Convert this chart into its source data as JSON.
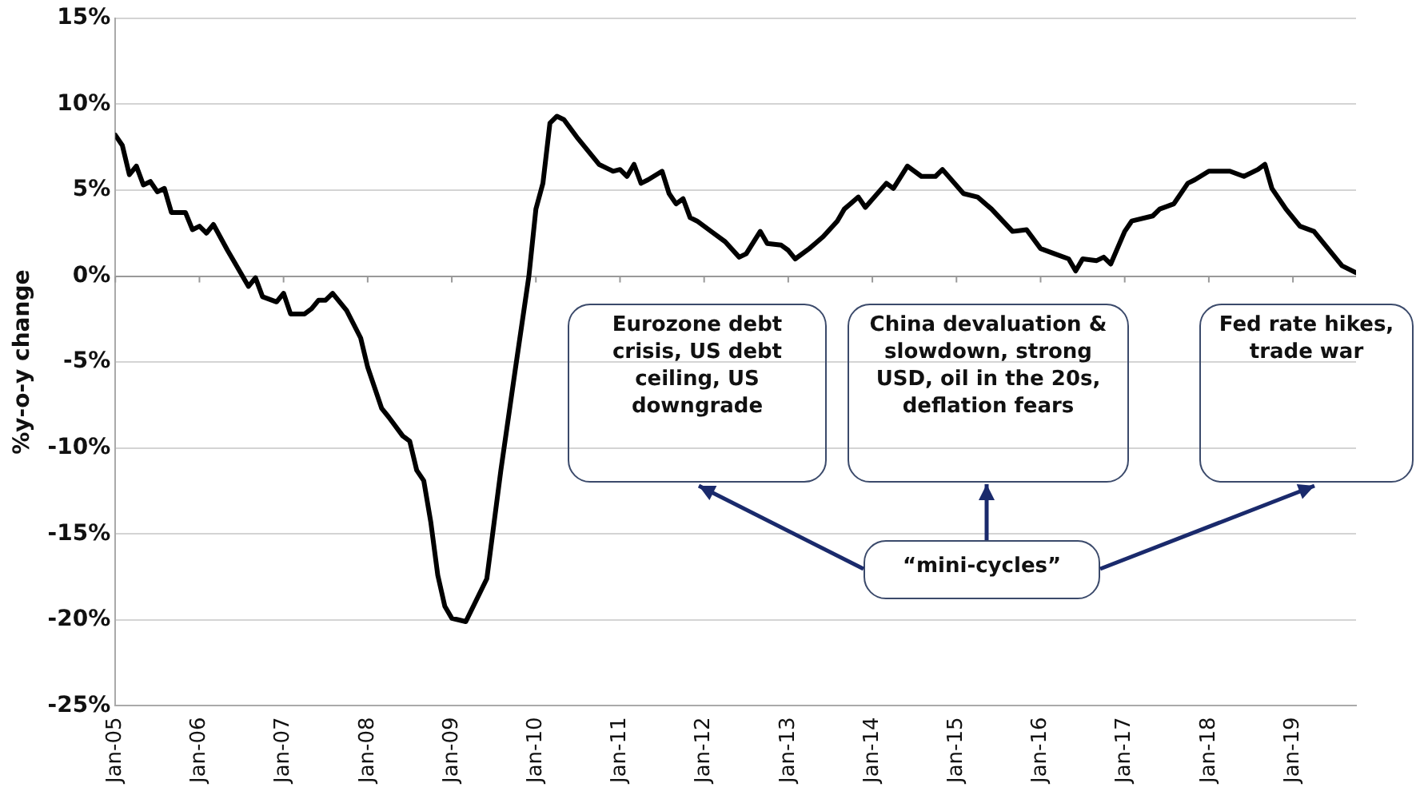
{
  "chart_data": {
    "type": "line",
    "ylabel": "%y-o-y change",
    "x": [
      "2005-01",
      "2005-02",
      "2005-03",
      "2005-04",
      "2005-05",
      "2005-06",
      "2005-07",
      "2005-08",
      "2005-09",
      "2005-11",
      "2005-12",
      "2006-01",
      "2006-02",
      "2006-03",
      "2006-05",
      "2006-06",
      "2006-08",
      "2006-09",
      "2006-10",
      "2006-12",
      "2007-01",
      "2007-02",
      "2007-04",
      "2007-05",
      "2007-06",
      "2007-07",
      "2007-08",
      "2007-10",
      "2007-12",
      "2008-01",
      "2008-03",
      "2008-04",
      "2008-06",
      "2008-07",
      "2008-08",
      "2008-09",
      "2008-10",
      "2008-11",
      "2008-12",
      "2009-01",
      "2009-03",
      "2009-06",
      "2009-08",
      "2009-10",
      "2009-12",
      "2010-01",
      "2010-02",
      "2010-03",
      "2010-04",
      "2010-05",
      "2010-07",
      "2010-09",
      "2010-10",
      "2010-12",
      "2011-01",
      "2011-02",
      "2011-03",
      "2011-04",
      "2011-05",
      "2011-07",
      "2011-08",
      "2011-09",
      "2011-10",
      "2011-11",
      "2011-12",
      "2012-02",
      "2012-04",
      "2012-06",
      "2012-07",
      "2012-09",
      "2012-10",
      "2012-12",
      "2013-01",
      "2013-02",
      "2013-04",
      "2013-06",
      "2013-08",
      "2013-09",
      "2013-11",
      "2013-12",
      "2014-03",
      "2014-04",
      "2014-06",
      "2014-08",
      "2014-10",
      "2014-11",
      "2015-02",
      "2015-04",
      "2015-06",
      "2015-09",
      "2015-11",
      "2016-01",
      "2016-03",
      "2016-05",
      "2016-06",
      "2016-07",
      "2016-09",
      "2016-10",
      "2016-11",
      "2017-01",
      "2017-02",
      "2017-05",
      "2017-06",
      "2017-08",
      "2017-10",
      "2017-11",
      "2018-01",
      "2018-04",
      "2018-06",
      "2018-08",
      "2018-09",
      "2018-10",
      "2018-12",
      "2019-02",
      "2019-04",
      "2019-06",
      "2019-08",
      "2019-10"
    ],
    "series": [
      {
        "color": "#000000",
        "values": [
          8.2,
          7.6,
          5.9,
          6.4,
          5.3,
          5.5,
          4.9,
          5.1,
          3.7,
          3.7,
          2.7,
          2.9,
          2.5,
          3.0,
          1.5,
          0.8,
          -0.6,
          -0.1,
          -1.2,
          -1.5,
          -1.0,
          -2.2,
          -2.2,
          -1.9,
          -1.4,
          -1.4,
          -1.0,
          -2.0,
          -3.6,
          -5.3,
          -7.7,
          -8.2,
          -9.3,
          -9.6,
          -11.3,
          -11.9,
          -14.3,
          -17.4,
          -19.2,
          -19.9,
          -20.1,
          -17.6,
          -11.3,
          -5.6,
          0,
          3.9,
          5.4,
          8.9,
          9.3,
          9.1,
          8.0,
          7.0,
          6.5,
          6.1,
          6.2,
          5.8,
          6.5,
          5.4,
          5.6,
          6.1,
          4.8,
          4.2,
          4.5,
          3.4,
          3.2,
          2.6,
          2.0,
          1.1,
          1.3,
          2.6,
          1.9,
          1.8,
          1.5,
          1.0,
          1.6,
          2.3,
          3.2,
          3.9,
          4.6,
          4.0,
          5.4,
          5.1,
          6.4,
          5.8,
          5.8,
          6.2,
          4.8,
          4.6,
          3.9,
          2.6,
          2.7,
          1.6,
          1.3,
          1.0,
          0.3,
          1.0,
          0.9,
          1.1,
          0.7,
          2.6,
          3.2,
          3.5,
          3.9,
          4.2,
          5.4,
          5.6,
          6.1,
          6.1,
          5.8,
          6.2,
          6.5,
          5.1,
          3.9,
          2.9,
          2.6,
          1.6,
          0.6,
          0.2
        ]
      }
    ],
    "xlim": [
      "2005-01",
      "2019-10"
    ],
    "xticks": [
      {
        "value": "2005-01",
        "label": "Jan-05"
      },
      {
        "value": "2006-01",
        "label": "Jan-06"
      },
      {
        "value": "2007-01",
        "label": "Jan-07"
      },
      {
        "value": "2008-01",
        "label": "Jan-08"
      },
      {
        "value": "2009-01",
        "label": "Jan-09"
      },
      {
        "value": "2010-01",
        "label": "Jan-10"
      },
      {
        "value": "2011-01",
        "label": "Jan-11"
      },
      {
        "value": "2012-01",
        "label": "Jan-12"
      },
      {
        "value": "2013-01",
        "label": "Jan-13"
      },
      {
        "value": "2014-01",
        "label": "Jan-14"
      },
      {
        "value": "2015-01",
        "label": "Jan-15"
      },
      {
        "value": "2016-01",
        "label": "Jan-16"
      },
      {
        "value": "2017-01",
        "label": "Jan-17"
      },
      {
        "value": "2018-01",
        "label": "Jan-18"
      },
      {
        "value": "2019-01",
        "label": "Jan-19"
      }
    ],
    "ylim": [
      -25,
      15
    ],
    "yticks": [
      {
        "value": -25,
        "label": "-25%"
      },
      {
        "value": -20,
        "label": "-20%"
      },
      {
        "value": -15,
        "label": "-15%"
      },
      {
        "value": -10,
        "label": "-10%"
      },
      {
        "value": -5,
        "label": "-5%"
      },
      {
        "value": 0,
        "label": "0%"
      },
      {
        "value": 5,
        "label": "5%"
      },
      {
        "value": 10,
        "label": "10%"
      },
      {
        "value": 15,
        "label": "15%"
      }
    ],
    "grid": "y",
    "legend": false,
    "marker": "none",
    "line_style": "solid",
    "annotations": [
      "Eurozone debt crisis, US debt ceiling, US downgrade",
      "China devaluation & slowdown, strong USD, oil in the 20s, deflation fears",
      "Fed rate hikes, trade war",
      "“mini-cycles”"
    ]
  }
}
